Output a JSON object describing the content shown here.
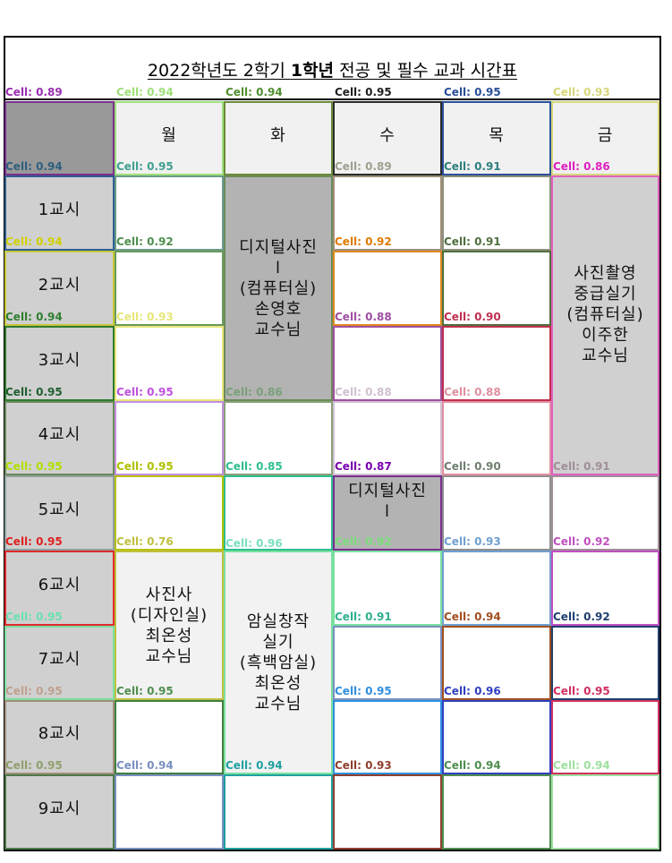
{
  "title": {
    "prefix": "2022학년도 2학기 ",
    "bold": "1학년",
    "suffix": " 전공 및 필수 교과 시간표"
  },
  "days": [
    "월",
    "화",
    "수",
    "목",
    "금"
  ],
  "periods": [
    "1교시",
    "2교시",
    "3교시",
    "4교시",
    "5교시",
    "6교시",
    "7교시",
    "8교시",
    "9교시"
  ],
  "classes": {
    "tue_digital_photo": "디지털사진\nl\n(컴퓨터실)\n손영호\n교수님",
    "fri_photo_intermediate": "사진촬영\n중급실기\n(컴퓨터실)\n이주한\n교수님",
    "wed_digital_photo": "디지털사진\nl",
    "mon_photo_history": "사진사\n(디자인실)\n최온성\n교수님",
    "tue_darkroom": "암실창작\n실기\n(흑백암실)\n최온성\n교수님"
  },
  "colors": {
    "border": "#000000",
    "corner_cell": "#999999",
    "period_cell": "#b3b3b3",
    "class_cell": "#d0d0d0"
  },
  "scores": {
    "title_row": [
      "Cell: 0.89",
      "Cell: 0.94",
      "Cell: 0.94",
      "Cell: 0.95",
      "Cell: 0.95",
      "Cell: 0.93"
    ],
    "header_row": [
      "Cell: 0.94",
      "Cell: 0.95",
      "Cell: 0.89",
      "Cell: 0.91",
      "Cell: 0.86"
    ],
    "p1": [
      "Cell: 0.94",
      "Cell: 0.92",
      "Cell: 0.92",
      "Cell: 0.91"
    ],
    "p2": [
      "Cell: 0.94",
      "Cell: 0.93",
      "Cell: 0.88",
      "Cell: 0.90"
    ],
    "p3": [
      "Cell: 0.95",
      "Cell: 0.95",
      "Cell: 0.86",
      "Cell: 0.88",
      "Cell: 0.88"
    ],
    "p4": [
      "Cell: 0.95",
      "Cell: 0.95",
      "Cell: 0.85",
      "Cell: 0.87",
      "Cell: 0.90",
      "Cell: 0.91"
    ],
    "p5": [
      "Cell: 0.95",
      "Cell: 0.76",
      "Cell: 0.96",
      "Cell: 0.92",
      "Cell: 0.93",
      "Cell: 0.92"
    ],
    "p6": [
      "Cell: 0.95",
      "Cell: 0.91",
      "Cell: 0.94",
      "Cell: 0.92"
    ],
    "p7": [
      "Cell: 0.95",
      "Cell: 0.95",
      "Cell: 0.95",
      "Cell: 0.96",
      "Cell: 0.95"
    ],
    "p8": [
      "Cell: 0.95",
      "Cell: 0.94",
      "Cell: 0.94",
      "Cell: 0.93",
      "Cell: 0.94",
      "Cell: 0.94"
    ]
  }
}
